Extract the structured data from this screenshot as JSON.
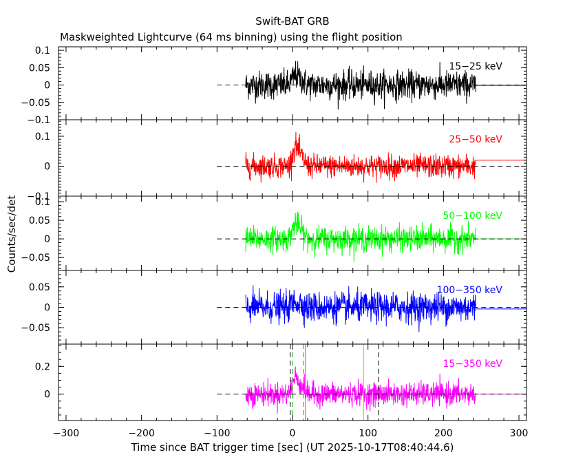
{
  "chart_data": {
    "type": "line",
    "title": "Swift-BAT GRB",
    "subtitle": "Maskweighted Lightcurve (64 ms binning) using the flight position",
    "xlabel": "Time since BAT trigger time [sec] (UT 2025-10-17T08:40:44.6)",
    "ylabel": "Counts/sec/det",
    "xlim": [
      -310,
      310
    ],
    "x_ticks": [
      -300,
      -200,
      -100,
      0,
      100,
      200,
      300
    ],
    "x_tick_labels": [
      "−300",
      "−200",
      "−100",
      "0",
      "100",
      "200",
      "300"
    ],
    "data_range": [
      -62,
      243
    ],
    "background_level_segment": [
      -100,
      310
    ],
    "panels": [
      {
        "name": "15-25 keV",
        "label": "15−25 keV",
        "color": "#000000",
        "ylim": [
          -0.1,
          0.11
        ],
        "y_ticks": [
          0.1,
          0.05,
          0,
          -0.05,
          -0.1
        ],
        "y_tick_labels": [
          "0.1",
          "0.05",
          "0",
          "−0.05",
          "−0.1"
        ],
        "noise_amplitude": 0.037,
        "peak": 0.03,
        "tail_level": -0.001
      },
      {
        "name": "25-50 keV",
        "label": "25−50 keV",
        "color": "#ff0000",
        "ylim": [
          -0.1,
          0.155
        ],
        "y_ticks": [
          0.1,
          0,
          -0.1
        ],
        "y_tick_labels": [
          "0.1",
          "0",
          "−0.1"
        ],
        "noise_amplitude": 0.035,
        "peak": 0.07,
        "tail_level": 0.02
      },
      {
        "name": "50-100 keV",
        "label": "50−100 keV",
        "color": "#00ff00",
        "ylim": [
          -0.085,
          0.115
        ],
        "y_ticks": [
          0.1,
          0.05,
          0,
          -0.05
        ],
        "y_tick_labels": [
          "0.1",
          "0.05",
          "0",
          "−0.05"
        ],
        "noise_amplitude": 0.03,
        "peak": 0.045,
        "tail_level": 0
      },
      {
        "name": "100-350 keV",
        "label": "100−350 keV",
        "color": "#0000ff",
        "ylim": [
          -0.09,
          0.09
        ],
        "y_ticks": [
          0.05,
          0,
          -0.05
        ],
        "y_tick_labels": [
          "0.05",
          "0",
          "−0.05"
        ],
        "noise_amplitude": 0.033,
        "peak": 0.015,
        "tail_level": -0.004
      },
      {
        "name": "15-350 keV",
        "label": "15−350 keV",
        "color": "#ff00ff",
        "ylim": [
          -0.19,
          0.36
        ],
        "y_ticks": [
          0.2,
          0
        ],
        "y_tick_labels": [
          "0.2",
          "0"
        ],
        "noise_amplitude": 0.075,
        "peak": 0.13,
        "tail_level": 0
      }
    ],
    "burst_window": {
      "start": -5,
      "peak_time": 4,
      "end": 20
    },
    "markers": [
      {
        "name": "T-start",
        "x": -3,
        "color": "#000000",
        "style": "dashed"
      },
      {
        "name": "T90-start",
        "x": 0,
        "color": "#00aa00",
        "style": "dashed"
      },
      {
        "name": "T-mid",
        "x": 15,
        "color": "#00aa00",
        "style": "dashed"
      },
      {
        "name": "T-peak",
        "x": 17,
        "color": "#00aaff",
        "style": "solid"
      },
      {
        "name": "T-late",
        "x": 94,
        "color": "#ff8800",
        "style": "solid"
      },
      {
        "name": "T-stop",
        "x": 114,
        "color": "#000000",
        "style": "dashed"
      }
    ]
  }
}
